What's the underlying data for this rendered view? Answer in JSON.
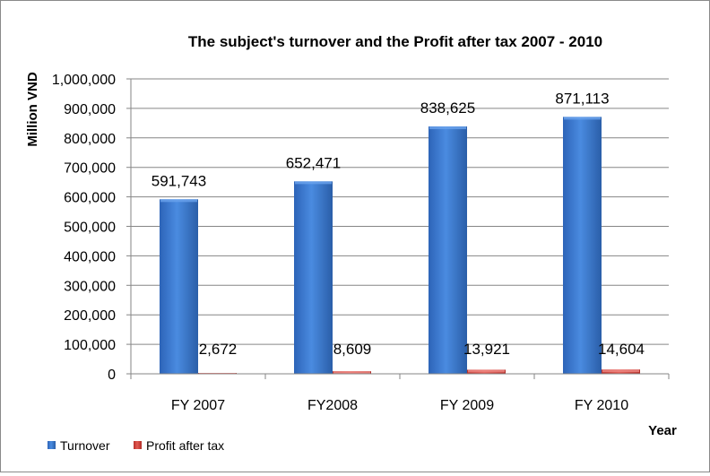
{
  "chart_data": {
    "type": "bar",
    "title": "The subject's turnover and the Profit after tax 2007  - 2010",
    "xlabel": "Year",
    "ylabel": "Million VND",
    "categories": [
      "FY 2007",
      "FY2008",
      "FY 2009",
      "FY 2010"
    ],
    "series": [
      {
        "name": "Turnover",
        "values": [
          591743,
          652471,
          838625,
          871113
        ],
        "value_labels": [
          "591,743",
          "652,471",
          "838,625",
          "871,113"
        ],
        "color": "#3a7bd5"
      },
      {
        "name": "Profit after tax",
        "values": [
          2672,
          8609,
          13921,
          14604
        ],
        "value_labels": [
          "2,672",
          "8,609",
          "13,921",
          "14,604"
        ],
        "color": "#d9413b"
      }
    ],
    "ylim": [
      0,
      1000000
    ],
    "yticks": [
      0,
      100000,
      200000,
      300000,
      400000,
      500000,
      600000,
      700000,
      800000,
      900000,
      1000000
    ],
    "ytick_labels": [
      "0",
      "100,000",
      "200,000",
      "300,000",
      "400,000",
      "500,000",
      "600,000",
      "700,000",
      "800,000",
      "900,000",
      "1,000,000"
    ],
    "grid": true,
    "legend_position": "bottom-left"
  }
}
